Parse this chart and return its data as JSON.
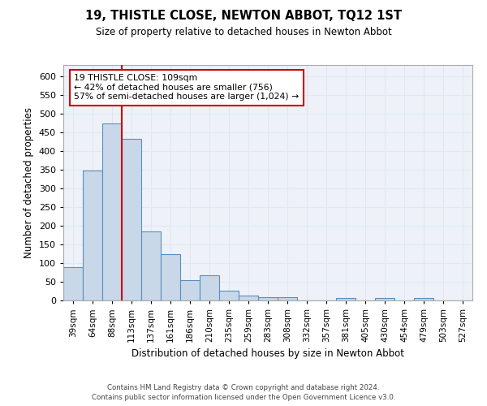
{
  "title": "19, THISTLE CLOSE, NEWTON ABBOT, TQ12 1ST",
  "subtitle": "Size of property relative to detached houses in Newton Abbot",
  "xlabel": "Distribution of detached houses by size in Newton Abbot",
  "ylabel": "Number of detached properties",
  "bin_labels": [
    "39sqm",
    "64sqm",
    "88sqm",
    "113sqm",
    "137sqm",
    "161sqm",
    "186sqm",
    "210sqm",
    "235sqm",
    "259sqm",
    "283sqm",
    "308sqm",
    "332sqm",
    "357sqm",
    "381sqm",
    "405sqm",
    "430sqm",
    "454sqm",
    "479sqm",
    "503sqm",
    "527sqm"
  ],
  "bar_heights": [
    90,
    348,
    473,
    432,
    184,
    124,
    55,
    68,
    25,
    13,
    8,
    8,
    0,
    0,
    6,
    0,
    6,
    0,
    7,
    0,
    0
  ],
  "bar_color": "#c8d8e8",
  "bar_edge_color": "#5a8fc0",
  "vline_color": "#cc0000",
  "annotation_text": "19 THISTLE CLOSE: 109sqm\n← 42% of detached houses are smaller (756)\n57% of semi-detached houses are larger (1,024) →",
  "annotation_box_color": "#ffffff",
  "annotation_box_edge": "#cc0000",
  "ylim": [
    0,
    630
  ],
  "yticks": [
    0,
    50,
    100,
    150,
    200,
    250,
    300,
    350,
    400,
    450,
    500,
    550,
    600
  ],
  "grid_color": "#dde8f0",
  "bg_color": "#eef2f8",
  "footer_line1": "Contains HM Land Registry data © Crown copyright and database right 2024.",
  "footer_line2": "Contains public sector information licensed under the Open Government Licence v3.0."
}
